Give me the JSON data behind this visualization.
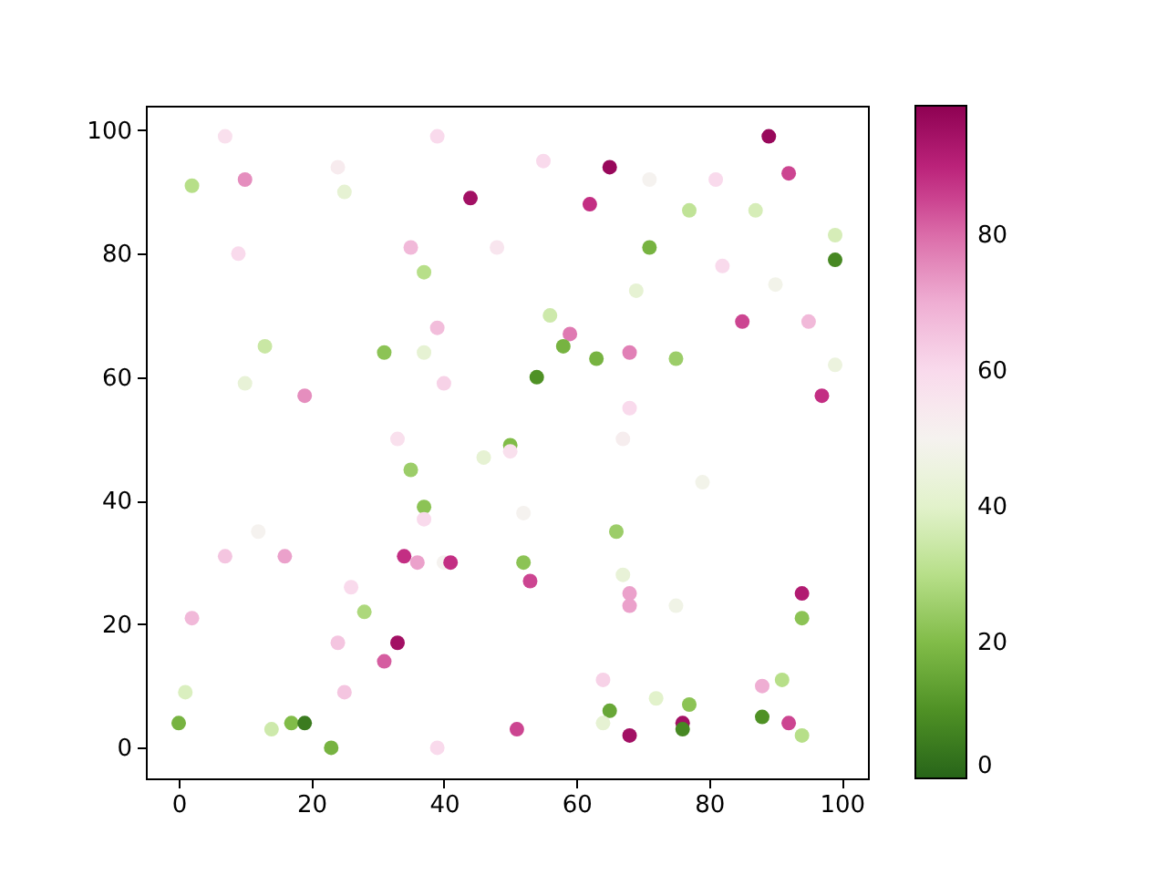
{
  "chart_data": {
    "type": "scatter",
    "marker": "circle",
    "grid": false,
    "xlim": [
      -4.95,
      103.95
    ],
    "ylim": [
      -4.95,
      103.95
    ],
    "xticks": [
      0,
      20,
      40,
      60,
      80,
      100
    ],
    "yticks": [
      0,
      20,
      40,
      60,
      80,
      100
    ],
    "clim": [
      0,
      99
    ],
    "cticks": [
      0,
      20,
      40,
      60,
      80
    ],
    "x": [
      0,
      2,
      7,
      10,
      9,
      1,
      2,
      7,
      12,
      13,
      10,
      19,
      16,
      14,
      17,
      19,
      23,
      24,
      25,
      24,
      25,
      26,
      28,
      31,
      31,
      33,
      33,
      34,
      35,
      35,
      37,
      37,
      37,
      37,
      36,
      39,
      39,
      40,
      39,
      40,
      41,
      44,
      48,
      46,
      50,
      50,
      67,
      52,
      53,
      52,
      66,
      79,
      67,
      68,
      68,
      75,
      94,
      94,
      64,
      88,
      91,
      72,
      77,
      65,
      64,
      51,
      68,
      76,
      76,
      88,
      92,
      94,
      89,
      55,
      65,
      71,
      81,
      92,
      62,
      77,
      87,
      99,
      71,
      99,
      82,
      90,
      69,
      56,
      85,
      95,
      59,
      58,
      63,
      68,
      75,
      99,
      54,
      97,
      68
    ],
    "values": [
      4,
      91,
      99,
      92,
      80,
      9,
      21,
      31,
      35,
      65,
      59,
      57,
      31,
      3,
      4,
      4,
      0,
      94,
      90,
      17,
      9,
      26,
      22,
      64,
      14,
      17,
      50,
      31,
      81,
      45,
      77,
      64,
      39,
      37,
      30,
      99,
      68,
      59,
      0,
      30,
      30,
      89,
      81,
      47,
      49,
      48,
      50,
      30,
      27,
      38,
      35,
      43,
      28,
      25,
      23,
      23,
      25,
      21,
      11,
      10,
      11,
      8,
      7,
      6,
      4,
      3,
      2,
      4,
      3,
      5,
      4,
      2,
      99,
      95,
      94,
      92,
      92,
      93,
      88,
      87,
      87,
      83,
      81,
      79,
      78,
      75,
      74,
      70,
      69,
      69,
      67,
      65,
      63,
      64,
      63,
      62,
      60,
      57,
      55
    ],
    "cvalues": [
      18,
      30,
      58,
      75,
      60,
      38,
      68,
      65,
      50,
      34,
      43,
      75,
      72,
      35,
      20,
      5,
      18,
      53,
      42,
      65,
      65,
      60,
      28,
      22,
      82,
      95,
      58,
      88,
      68,
      25,
      30,
      42,
      22,
      60,
      72,
      60,
      67,
      62,
      60,
      50,
      88,
      95,
      56,
      42,
      20,
      58,
      52,
      22,
      85,
      50,
      25,
      48,
      43,
      72,
      72,
      47,
      92,
      22,
      62,
      70,
      30,
      40,
      22,
      15,
      42,
      85,
      95,
      95,
      8,
      10,
      85,
      30,
      97,
      60,
      97,
      50,
      60,
      85,
      88,
      32,
      37,
      37,
      18,
      8,
      60,
      48,
      42,
      35,
      85,
      68,
      78,
      18,
      18,
      77,
      25,
      45,
      10,
      88,
      60
    ]
  }
}
